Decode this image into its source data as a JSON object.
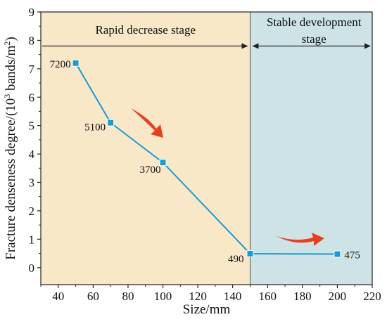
{
  "chart_data": {
    "type": "line",
    "xlabel": "Size/mm",
    "ylabel_prefix": "Fracture denseness degree/(10",
    "ylabel_sup1": "3",
    "ylabel_mid": " bands/m",
    "ylabel_sup2": "2",
    "ylabel_suffix": ")",
    "xlim": [
      30,
      220
    ],
    "ylim": [
      -0.6,
      9
    ],
    "xticks": [
      40,
      60,
      80,
      100,
      120,
      140,
      160,
      180,
      200,
      220
    ],
    "yticks": [
      0,
      1,
      2,
      3,
      4,
      5,
      6,
      7,
      8,
      9
    ],
    "series": [
      {
        "x": [
          50,
          70,
          100,
          150,
          200
        ],
        "y": [
          7.2,
          5.1,
          3.7,
          0.49,
          0.475
        ],
        "labels": [
          "7200",
          "5100",
          "3700",
          "490",
          "475"
        ],
        "color": "#1a9ad6"
      }
    ],
    "regions": [
      {
        "label_lines": [
          "Rapid decrease stage"
        ],
        "x_range": [
          30,
          150
        ],
        "fill": "#f8e8c8"
      },
      {
        "label_lines": [
          "Stable development",
          "stage"
        ],
        "x_range": [
          150,
          220
        ],
        "fill": "#cde3e6"
      }
    ],
    "region_divider_y": 7.8,
    "arrow_color": "#e8401e"
  }
}
